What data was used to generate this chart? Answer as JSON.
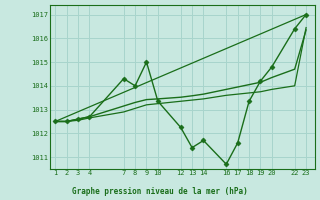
{
  "background_color": "#c8e8e0",
  "grid_color": "#a8d4cc",
  "line_color": "#1a6e1a",
  "title": "Graphe pression niveau de la mer (hPa)",
  "ylabel_vals": [
    1011,
    1012,
    1013,
    1014,
    1015,
    1016,
    1017
  ],
  "xtick_positions": [
    1,
    2,
    3,
    4,
    7,
    8,
    9,
    10,
    12,
    13,
    14,
    16,
    17,
    18,
    19,
    20,
    22,
    23
  ],
  "xtick_labels": [
    "1",
    "2",
    "3",
    "4",
    "7",
    "8",
    "9",
    "10",
    "12",
    "13",
    "14",
    "16",
    "17",
    "18",
    "19",
    "20",
    "22",
    "23"
  ],
  "xlim": [
    0.5,
    23.8
  ],
  "ylim": [
    1010.5,
    1017.4
  ],
  "series": [
    {
      "x": [
        1,
        2,
        3,
        4,
        7,
        8,
        9,
        10,
        12,
        13,
        14,
        16,
        17,
        18,
        19,
        20,
        22,
        23
      ],
      "y": [
        1012.5,
        1012.5,
        1012.6,
        1012.7,
        1014.3,
        1014.0,
        1015.0,
        1013.35,
        1012.25,
        1011.4,
        1011.7,
        1010.7,
        1011.6,
        1013.35,
        1014.2,
        1014.8,
        1016.4,
        1017.0
      ],
      "marker": "D",
      "markersize": 2.5,
      "linewidth": 1.0
    },
    {
      "x": [
        1,
        2,
        3,
        4,
        7,
        8,
        9,
        10,
        12,
        13,
        14,
        16,
        17,
        18,
        19,
        20,
        22,
        23
      ],
      "y": [
        1012.5,
        1012.5,
        1012.6,
        1012.7,
        1013.15,
        1013.3,
        1013.42,
        1013.45,
        1013.52,
        1013.58,
        1013.65,
        1013.85,
        1013.95,
        1014.05,
        1014.15,
        1014.35,
        1014.7,
        1016.35
      ],
      "marker": null,
      "markersize": 0,
      "linewidth": 1.0
    },
    {
      "x": [
        1,
        23
      ],
      "y": [
        1012.5,
        1017.0
      ],
      "marker": null,
      "markersize": 0,
      "linewidth": 0.9
    },
    {
      "x": [
        1,
        2,
        3,
        4,
        7,
        8,
        9,
        10,
        12,
        13,
        14,
        16,
        17,
        18,
        19,
        20,
        22,
        23
      ],
      "y": [
        1012.5,
        1012.5,
        1012.55,
        1012.65,
        1012.9,
        1013.05,
        1013.2,
        1013.25,
        1013.35,
        1013.4,
        1013.45,
        1013.6,
        1013.65,
        1013.7,
        1013.75,
        1013.85,
        1014.0,
        1016.45
      ],
      "marker": null,
      "markersize": 0,
      "linewidth": 0.9
    }
  ]
}
